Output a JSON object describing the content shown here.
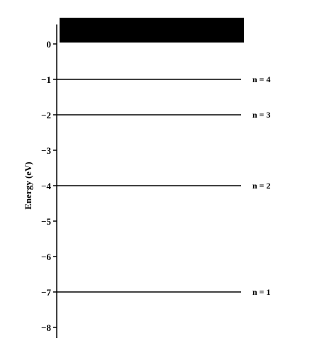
{
  "diagram": {
    "y_axis_label": "Energy (eV)",
    "y_ticks": [
      "0",
      "-1",
      "-2",
      "-3",
      "-4",
      "-5",
      "-6",
      "-7",
      "-8"
    ],
    "ylim": [
      -8.3,
      0.55
    ],
    "continuum": {
      "from": 0,
      "to": 0.5,
      "color": "#000000"
    },
    "levels": [
      {
        "label": "n = 4",
        "energy": -1
      },
      {
        "label": "n = 3",
        "energy": -2
      },
      {
        "label": "n = 2",
        "energy": -4
      },
      {
        "label": "n = 1",
        "energy": -7
      }
    ]
  }
}
